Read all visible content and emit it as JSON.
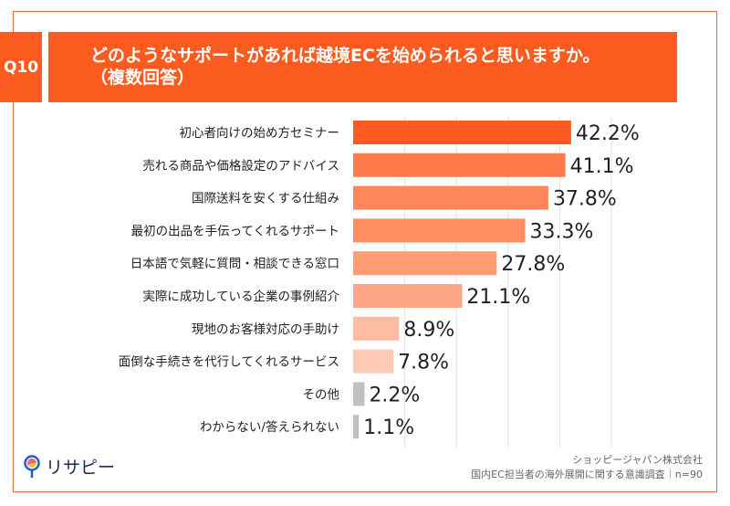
{
  "header": {
    "question_no": "Q10",
    "title_line1": "どのようなサポートがあれば越境ECを始められると思いますか。",
    "title_line2": "（複数回答）"
  },
  "colors": {
    "accent": "#fb5b1e",
    "bars": [
      "#fd5a1f",
      "#fe7a4b",
      "#fe8659",
      "#fe8d62",
      "#fe9c73",
      "#fea686",
      "#febca2",
      "#fecab6",
      "#c0c0c0",
      "#c0c0c0"
    ]
  },
  "chart_data": {
    "type": "bar",
    "orientation": "horizontal",
    "categories": [
      "初心者向けの始め方セミナー",
      "売れる商品や価格設定のアドバイス",
      "国際送料を安くする仕組み",
      "最初の出品を手伝ってくれるサポート",
      "日本語で気軽に質問・相談できる窓口",
      "実際に成功している企業の事例紹介",
      "現地のお客様対応の手助け",
      "面倒な手続きを代行してくれるサービス",
      "その他",
      "わからない/答えられない"
    ],
    "values": [
      42.2,
      41.1,
      37.8,
      33.3,
      27.8,
      21.1,
      8.9,
      7.8,
      2.2,
      1.1
    ],
    "value_labels": [
      "42.2%",
      "41.1%",
      "37.8%",
      "33.3%",
      "27.8%",
      "21.1%",
      "8.9%",
      "7.8%",
      "2.2%",
      "1.1%"
    ],
    "unit": "%",
    "xlim": [
      0,
      50
    ],
    "grid": true
  },
  "footer": {
    "logo_text": "リサピー",
    "company": "ショッピージャパン株式会社",
    "survey": "国内EC担当者の海外展開に関する意識調査｜n=90"
  }
}
